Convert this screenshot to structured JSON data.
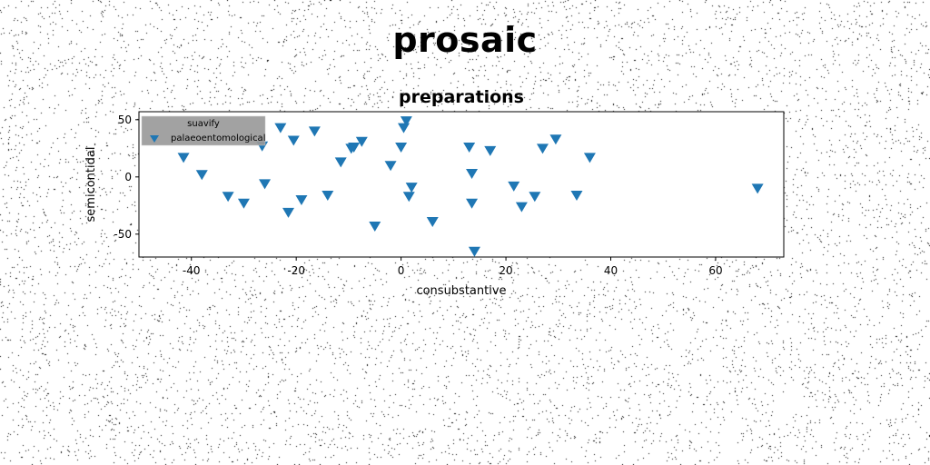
{
  "page": {
    "title": "prosaic"
  },
  "chart_data": {
    "type": "scatter",
    "title": "preparations",
    "xlabel": "consubstantive",
    "ylabel": "semicontidal",
    "xlim": [
      -50,
      73
    ],
    "ylim": [
      -70,
      57
    ],
    "xticks": [
      -40,
      -20,
      0,
      20,
      40,
      60
    ],
    "yticks": [
      -50,
      0,
      50
    ],
    "grid": false,
    "legend": {
      "title": "suavify",
      "placement": "top-left",
      "entries": [
        "palaeoentomological"
      ]
    },
    "series": [
      {
        "name": "palaeoentomological",
        "color": "#1f77b4",
        "marker": "triangle-down",
        "points": [
          [
            -41.5,
            17
          ],
          [
            -38,
            2
          ],
          [
            -33,
            -17
          ],
          [
            -30,
            -23
          ],
          [
            -26,
            -6
          ],
          [
            -26.5,
            27
          ],
          [
            -23,
            43
          ],
          [
            -21.5,
            -31
          ],
          [
            -20.5,
            32
          ],
          [
            -19,
            -20
          ],
          [
            -16.5,
            40
          ],
          [
            -14,
            -16
          ],
          [
            -11.5,
            13
          ],
          [
            -9.5,
            25
          ],
          [
            -9,
            26
          ],
          [
            -7.5,
            31
          ],
          [
            -5,
            -43
          ],
          [
            -2,
            10
          ],
          [
            0,
            26
          ],
          [
            0.5,
            43
          ],
          [
            1,
            49
          ],
          [
            1.5,
            -17
          ],
          [
            2,
            -9
          ],
          [
            6,
            -39
          ],
          [
            13,
            26
          ],
          [
            13.5,
            -23
          ],
          [
            13.5,
            3
          ],
          [
            14,
            -65
          ],
          [
            17,
            23
          ],
          [
            21.5,
            -8
          ],
          [
            23,
            -26
          ],
          [
            25.5,
            -17
          ],
          [
            27,
            25
          ],
          [
            29.5,
            33
          ],
          [
            33.5,
            -16
          ],
          [
            36,
            17
          ],
          [
            68,
            -10
          ]
        ]
      }
    ]
  }
}
